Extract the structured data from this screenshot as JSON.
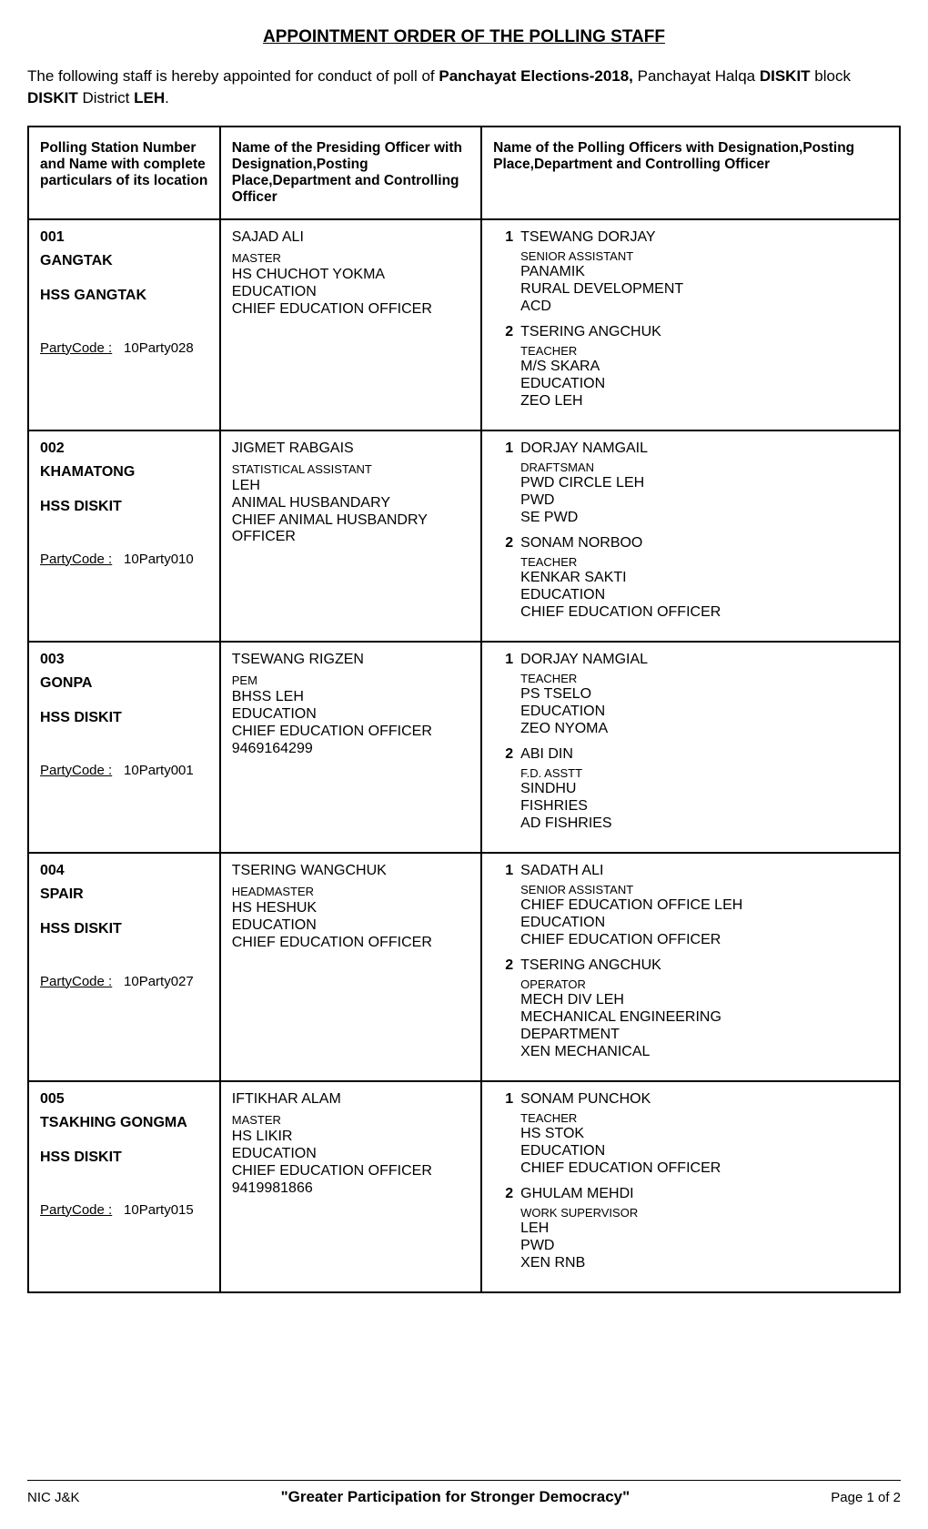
{
  "title": "APPOINTMENT ORDER OF THE POLLING STAFF",
  "intro_pre": "The following  staff is hereby appointed for conduct of poll of ",
  "election": "Panchayat Elections-2018,",
  "intro_post1": " Panchayat Halqa ",
  "halqa": "DISKIT",
  "intro_block_label": " block ",
  "block": "DISKIT",
  "intro_district_label": " District ",
  "district": "LEH",
  "intro_end": ".",
  "headers": {
    "col1": "Polling Station Number and Name with complete particulars of its location",
    "col2": "Name of the Presiding Officer with Designation,Posting Place,Department and Controlling Officer",
    "col3": "Name of the Polling Officers with Designation,Posting Place,Department and Controlling Officer"
  },
  "party_label": "PartyCode :",
  "rows": [
    {
      "num": "001",
      "name": "GANGTAK",
      "school": "HSS GANGTAK",
      "party": "10Party028",
      "presiding": {
        "name": "SAJAD ALI",
        "desig": "MASTER",
        "lines": [
          "HS CHUCHOT YOKMA",
          "EDUCATION",
          "CHIEF EDUCATION OFFICER"
        ]
      },
      "officers": [
        {
          "n": "1",
          "name": "TSEWANG DORJAY",
          "desig": "SENIOR ASSISTANT",
          "lines": [
            "PANAMIK",
            "RURAL DEVELOPMENT",
            "ACD"
          ]
        },
        {
          "n": "2",
          "name": "TSERING ANGCHUK",
          "desig": "TEACHER",
          "lines": [
            "M/S SKARA",
            "EDUCATION",
            "ZEO LEH"
          ]
        }
      ]
    },
    {
      "num": "002",
      "name": "KHAMATONG",
      "school": "HSS DISKIT",
      "party": "10Party010",
      "presiding": {
        "name": "JIGMET RABGAIS",
        "desig": "STATISTICAL ASSISTANT",
        "lines": [
          "LEH",
          "ANIMAL HUSBANDARY",
          "CHIEF ANIMAL HUSBANDRY OFFICER"
        ]
      },
      "officers": [
        {
          "n": "1",
          "name": "DORJAY NAMGAIL",
          "desig": "DRAFTSMAN",
          "lines": [
            "PWD CIRCLE LEH",
            "PWD",
            "SE PWD"
          ]
        },
        {
          "n": "2",
          "name": "SONAM NORBOO",
          "desig": "TEACHER",
          "lines": [
            "KENKAR SAKTI",
            "EDUCATION",
            "CHIEF EDUCATION OFFICER"
          ]
        }
      ]
    },
    {
      "num": "003",
      "name": "GONPA",
      "school": "HSS DISKIT",
      "party": "10Party001",
      "presiding": {
        "name": "TSEWANG RIGZEN",
        "desig": "PEM",
        "lines": [
          "BHSS LEH",
          "EDUCATION",
          "CHIEF EDUCATION OFFICER",
          "9469164299"
        ]
      },
      "officers": [
        {
          "n": "1",
          "name": "DORJAY NAMGIAL",
          "desig": "TEACHER",
          "lines": [
            "PS TSELO",
            "EDUCATION",
            "ZEO NYOMA"
          ]
        },
        {
          "n": "2",
          "name": "ABI DIN",
          "desig": "F.D. ASSTT",
          "lines": [
            "SINDHU",
            "FISHRIES",
            "AD FISHRIES"
          ]
        }
      ]
    },
    {
      "num": "004",
      "name": "SPAIR",
      "school": "HSS DISKIT",
      "party": "10Party027",
      "presiding": {
        "name": "TSERING WANGCHUK",
        "desig": "HEADMASTER",
        "lines": [
          "HS HESHUK",
          "EDUCATION",
          "CHIEF EDUCATION OFFICER"
        ]
      },
      "officers": [
        {
          "n": "1",
          "name": "SADATH ALI",
          "desig": "SENIOR ASSISTANT",
          "lines": [
            "CHIEF EDUCATION OFFICE LEH",
            "EDUCATION",
            "CHIEF EDUCATION OFFICER"
          ]
        },
        {
          "n": "2",
          "name": "TSERING ANGCHUK",
          "desig": "OPERATOR",
          "lines": [
            "MECH DIV LEH",
            "MECHANICAL ENGINEERING",
            "DEPARTMENT",
            "XEN MECHANICAL"
          ]
        }
      ]
    },
    {
      "num": "005",
      "name": "TSAKHING GONGMA",
      "school": "HSS DISKIT",
      "party": "10Party015",
      "presiding": {
        "name": "IFTIKHAR ALAM",
        "desig": "MASTER",
        "lines": [
          "HS LIKIR",
          "EDUCATION",
          "CHIEF EDUCATION OFFICER",
          "9419981866"
        ]
      },
      "officers": [
        {
          "n": "1",
          "name": "SONAM PUNCHOK",
          "desig": "TEACHER",
          "lines": [
            "HS STOK",
            "EDUCATION",
            "CHIEF EDUCATION OFFICER"
          ]
        },
        {
          "n": "2",
          "name": "GHULAM MEHDI",
          "desig": "WORK SUPERVISOR",
          "lines": [
            "LEH",
            "PWD",
            "XEN RNB"
          ]
        }
      ]
    }
  ],
  "footer": {
    "left": "NIC J&K",
    "center": "\"Greater Participation for Stronger Democracy\"",
    "right": "Page 1 of 2"
  }
}
